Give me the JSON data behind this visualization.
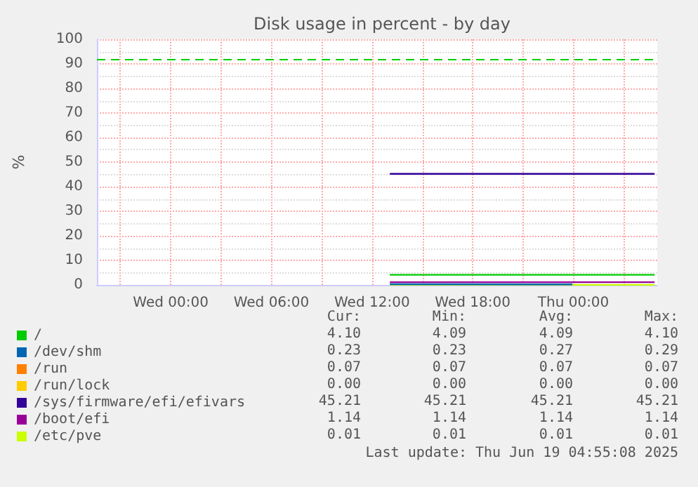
{
  "chart_data": {
    "type": "line",
    "title": "Disk usage in percent - by day",
    "ylabel": "%",
    "xlim": [
      "2025-06-17T19:36",
      "2025-06-19T05:00"
    ],
    "xticks": [
      {
        "value": "2025-06-17T21:00",
        "label": null
      },
      {
        "value": "2025-06-18T00:00",
        "label": "Wed 00:00"
      },
      {
        "value": "2025-06-18T03:00",
        "label": null
      },
      {
        "value": "2025-06-18T06:00",
        "label": "Wed 06:00"
      },
      {
        "value": "2025-06-18T09:00",
        "label": null
      },
      {
        "value": "2025-06-18T12:00",
        "label": "Wed 12:00"
      },
      {
        "value": "2025-06-18T15:00",
        "label": null
      },
      {
        "value": "2025-06-18T18:00",
        "label": "Wed 18:00"
      },
      {
        "value": "2025-06-18T21:00",
        "label": null
      },
      {
        "value": "2025-06-19T00:00",
        "label": "Thu 00:00"
      },
      {
        "value": "2025-06-19T03:00",
        "label": null
      }
    ],
    "ylim": [
      0,
      100
    ],
    "yticks": [
      0,
      10,
      20,
      30,
      40,
      50,
      60,
      70,
      80,
      90,
      100
    ],
    "grid": true,
    "legend": "bottom left",
    "marker": "none",
    "line_style": "solid",
    "ref_lines": [
      {
        "axis": "y",
        "value": 92,
        "color": "#00cc00",
        "line_style": "dashed"
      }
    ],
    "series": [
      {
        "name": "/",
        "color": "#00cc00",
        "x": [
          "2025-06-18T13:06",
          "2025-06-19T04:48"
        ],
        "values": [
          4.1,
          4.1
        ]
      },
      {
        "name": "/dev/shm",
        "color": "#0066b3",
        "x": [
          "2025-06-18T13:06",
          "2025-06-18T23:54"
        ],
        "values": [
          0.3,
          0.2
        ]
      },
      {
        "name": "/run",
        "color": "#ff8000"
      },
      {
        "name": "/run/lock",
        "color": "#ffcc00"
      },
      {
        "name": "/sys/firmware/efi/efivars",
        "color": "#330099",
        "x": [
          "2025-06-18T13:06",
          "2025-06-19T04:48"
        ],
        "values": [
          45.2,
          45.2
        ]
      },
      {
        "name": "/boot/efi",
        "color": "#990099",
        "x": [
          "2025-06-18T13:06",
          "2025-06-19T04:48"
        ],
        "values": [
          1.1,
          1.1
        ]
      },
      {
        "name": "/etc/pve",
        "color": "#ccff00",
        "x": [
          "2025-06-18T13:06",
          "2025-06-19T04:48"
        ],
        "values": [
          0,
          0
        ]
      }
    ],
    "annotations": [
      "Cur:",
      "Min:",
      "Avg:",
      "Max:",
      "4.10",
      "4.09",
      "4.09",
      "4.10",
      "0.23",
      "0.23",
      "0.27",
      "0.29",
      "0.07",
      "0.07",
      "0.07",
      "0.07",
      "0.00",
      "0.00",
      "0.00",
      "0.00",
      "45.21",
      "45.21",
      "45.21",
      "45.21",
      "1.14",
      "1.14",
      "1.14",
      "1.14",
      "0.01",
      "0.01",
      "0.01",
      "0.01",
      "Last update: Thu Jun 19 04:55:08 2025"
    ]
  }
}
